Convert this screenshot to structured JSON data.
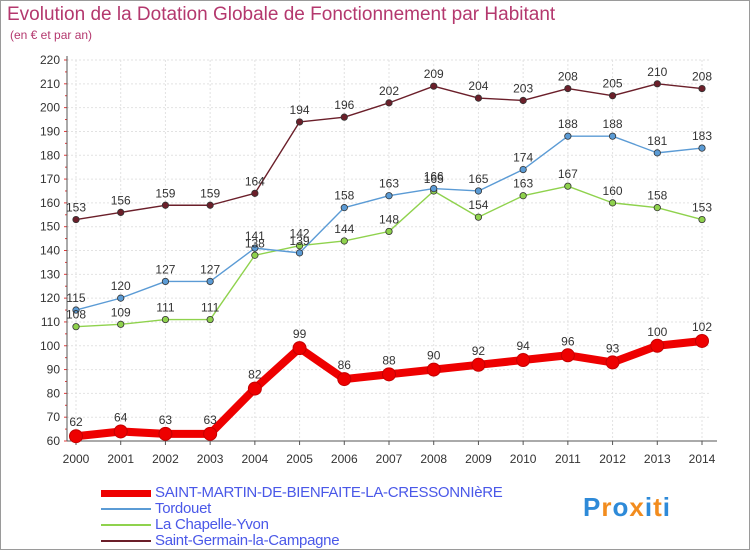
{
  "chart_data": {
    "type": "line",
    "title": "Evolution de la Dotation Globale de Fonctionnement par Habitant",
    "subtitle": "(en € et par an)",
    "xlabel": "",
    "ylabel": "",
    "x": [
      "2000",
      "2001",
      "2002",
      "2003",
      "2004",
      "2005",
      "2006",
      "2007",
      "2008",
      "2009",
      "2010",
      "2011",
      "2012",
      "2013",
      "2014"
    ],
    "ylim": [
      60,
      220
    ],
    "yticks": [
      60,
      70,
      80,
      90,
      100,
      110,
      120,
      130,
      140,
      150,
      160,
      170,
      180,
      190,
      200,
      210,
      220
    ],
    "grid": true,
    "legend_position": "bottom-left",
    "series": [
      {
        "name": "SAINT-MARTIN-DE-BIENFAITE-LA-CRESSONNIèRE",
        "color": "#ee0000",
        "values": [
          62,
          64,
          63,
          63,
          82,
          99,
          86,
          88,
          90,
          92,
          94,
          96,
          93,
          100,
          102
        ]
      },
      {
        "name": "Tordouet",
        "color": "#5b9bd5",
        "values": [
          115,
          120,
          127,
          127,
          141,
          139,
          158,
          163,
          166,
          165,
          174,
          188,
          188,
          181,
          183
        ]
      },
      {
        "name": "La Chapelle-Yvon",
        "color": "#8fd24d",
        "values": [
          108,
          109,
          111,
          111,
          138,
          142,
          144,
          148,
          165,
          154,
          163,
          167,
          160,
          158,
          153
        ]
      },
      {
        "name": "Saint-Germain-la-Campagne",
        "color": "#6b1f2a",
        "values": [
          153,
          156,
          159,
          159,
          164,
          194,
          196,
          202,
          209,
          204,
          203,
          208,
          205,
          210,
          208
        ]
      }
    ]
  },
  "brand": {
    "letters": [
      "P",
      "r",
      "o",
      "x",
      "i",
      "t",
      "i"
    ],
    "colors": [
      "#2e8ad8",
      "#f28c1e",
      "#2e8ad8",
      "#f28c1e",
      "#2e8ad8",
      "#f28c1e",
      "#2e8ad8"
    ]
  }
}
